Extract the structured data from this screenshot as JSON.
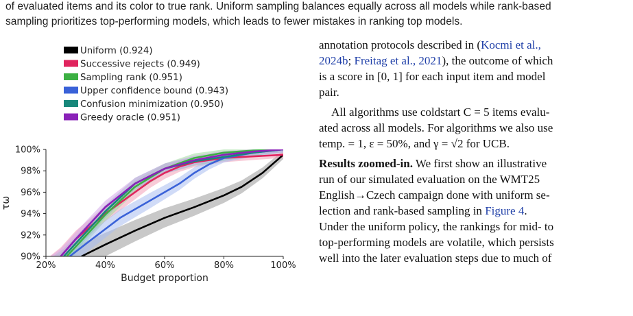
{
  "caption": {
    "line1": "of evaluated items and its color to true rank. Uniform sampling balances equally across all models while rank-based",
    "line2": "sampling prioritizes top-performing models, which leads to fewer mistakes in ranking top models."
  },
  "chart_data": {
    "type": "line",
    "xlabel": "Budget proportion",
    "ylabel": "τω",
    "xlim": [
      20,
      100
    ],
    "ylim": [
      90,
      100
    ],
    "xticks": [
      "20%",
      "40%",
      "60%",
      "80%",
      "100%"
    ],
    "yticks": [
      "90%",
      "92%",
      "94%",
      "96%",
      "98%",
      "100%"
    ],
    "legend_position": "top-left",
    "series": [
      {
        "name": "Uniform (0.924)",
        "color": "#000000",
        "band": "#9a9a9a",
        "x": [
          32,
          40,
          50,
          60,
          70,
          80,
          86,
          93,
          100
        ],
        "y": [
          90.0,
          91.1,
          92.4,
          93.6,
          94.6,
          95.7,
          96.5,
          97.8,
          99.5
        ]
      },
      {
        "name": "Successive rejects (0.949)",
        "color": "#e0245e",
        "band": "#f2a0b8",
        "x": [
          25,
          30,
          40,
          50,
          55,
          60,
          65,
          70,
          80,
          90,
          100
        ],
        "y": [
          90.0,
          91.6,
          94.0,
          96.0,
          97.0,
          97.8,
          98.4,
          98.8,
          99.2,
          99.35,
          99.5
        ]
      },
      {
        "name": "Sampling rank (0.951)",
        "color": "#3cb043",
        "band": "#9edc9e",
        "x": [
          27,
          30,
          40,
          50,
          60,
          70,
          80,
          90,
          100
        ],
        "y": [
          90.0,
          90.9,
          93.9,
          96.5,
          98.2,
          99.2,
          99.7,
          99.9,
          100.0
        ]
      },
      {
        "name": "Upper confidence bound (0.943)",
        "color": "#3a62d8",
        "band": "#a9bdf0",
        "x": [
          28,
          35,
          45,
          55,
          60,
          65,
          70,
          75,
          80,
          90,
          100
        ],
        "y": [
          90.0,
          91.5,
          93.6,
          95.2,
          96.0,
          96.8,
          97.8,
          98.6,
          99.2,
          99.7,
          100.0
        ]
      },
      {
        "name": "Confusion minimization (0.950)",
        "color": "#17877a",
        "band": "#8cc9c0",
        "x": [
          26,
          30,
          40,
          50,
          60,
          70,
          80,
          90,
          100
        ],
        "y": [
          90.0,
          91.2,
          94.2,
          96.8,
          98.2,
          98.9,
          99.3,
          99.7,
          100.0
        ]
      },
      {
        "name": "Greedy oracle (0.951)",
        "color": "#8a22b8",
        "band": "#d3a8ea",
        "x": [
          25,
          30,
          40,
          50,
          60,
          70,
          80,
          90,
          100
        ],
        "y": [
          90.0,
          91.6,
          94.6,
          96.8,
          98.2,
          99.0,
          99.5,
          99.8,
          100.0
        ]
      }
    ]
  },
  "text": {
    "l1": "annotation protocols described in (",
    "c1": "Kocmi et al.,",
    "c2": "2024b",
    "s1": "; ",
    "c3": "Freitag et al., 2021",
    "l2": "), the outcome of which",
    "l3": "is a score in [0, 1] for each input item and model",
    "l4": "pair.",
    "l5": "All algorithms use coldstart C = 5 items evalu-",
    "l6": "ated across all models. For algorithms we also use",
    "l7": "temp. = 1, ε = 50%, and γ = √2 for UCB.",
    "h1": "Results zoomed-in.",
    "l8": " We first show an illustrative",
    "l9": "run of our simulated evaluation on the WMT25",
    "l10": "English→Czech campaign done with uniform se-",
    "l11": "lection and rank-based sampling in ",
    "c4": "Figure 4",
    "l11b": ".",
    "l12": "Under the uniform policy, the rankings for mid- to",
    "l13": "top-performing models are volatile, which persists",
    "l14": "well into the later evaluation steps due to much of"
  }
}
